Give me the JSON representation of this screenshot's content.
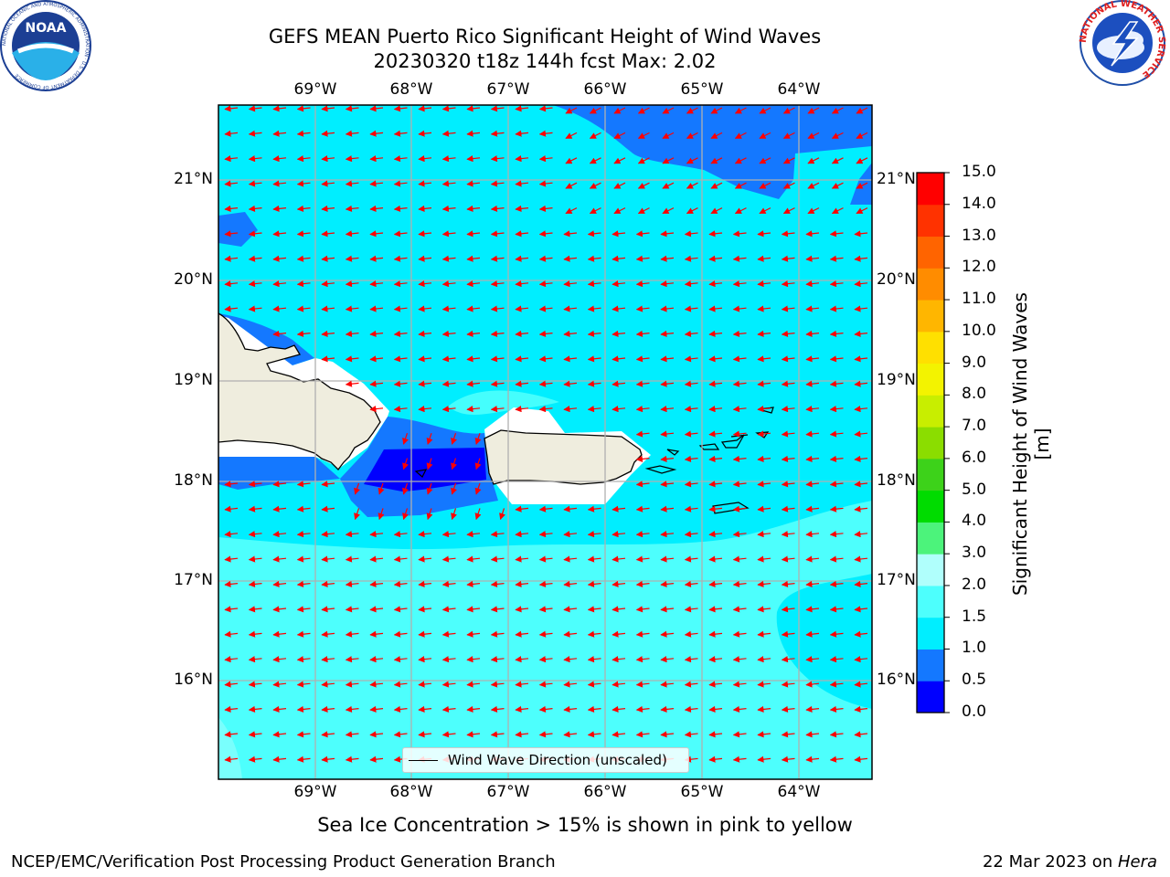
{
  "header": {
    "title_line1": "GEFS MEAN Puerto Rico Significant Height of Wind Waves",
    "title_line2": "20230320 t18z 144h fcst   Max: 2.02"
  },
  "logos": {
    "left": {
      "icon": "noaa-logo-icon",
      "text": "NOAA",
      "ring_text": "NATIONAL OCEANIC AND ATMOSPHERIC ADMINISTRATION · U.S. DEPARTMENT OF COMMERCE"
    },
    "right": {
      "icon": "nws-logo-icon",
      "ring_text": "NATIONAL WEATHER SERVICE"
    }
  },
  "map": {
    "lon_labels": [
      "69°W",
      "68°W",
      "67°W",
      "66°W",
      "65°W",
      "64°W"
    ],
    "lat_labels": [
      "21°N",
      "20°N",
      "19°N",
      "18°N",
      "17°N",
      "16°N"
    ],
    "lon_range": [
      -70.0,
      -63.2
    ],
    "lat_range": [
      15.1,
      21.8
    ],
    "gridlines": true,
    "land_color": "#efedde",
    "arrow_color": "#ff0000",
    "legend_label": "Wind Wave Direction (unscaled)",
    "legend_placement": "lower-center"
  },
  "colorbar": {
    "title": "Significant Height of Wind Waves [m]",
    "tick_labels": [
      "0.0",
      "0.5",
      "1.0",
      "1.5",
      "2.0",
      "3.0",
      "4.0",
      "5.0",
      "6.0",
      "7.0",
      "8.0",
      "9.0",
      "10.0",
      "11.0",
      "12.0",
      "13.0",
      "14.0",
      "15.0"
    ],
    "colors": [
      "#0000ff",
      "#1478ff",
      "#00eeff",
      "#4dfffd",
      "#b0fffc",
      "#4cf37b",
      "#00dc00",
      "#3dd21a",
      "#8bdd00",
      "#c8ee00",
      "#f3f300",
      "#ffe000",
      "#ffb600",
      "#ff8c00",
      "#ff6400",
      "#ff3200",
      "#ff0000"
    ]
  },
  "footer": {
    "note": "Sea Ice Concentration > 15% is shown in pink to yellow",
    "branch": "NCEP/EMC/Verification Post Processing Product Generation Branch",
    "date": "22 Mar 2023 on ",
    "machine": "Hera"
  }
}
